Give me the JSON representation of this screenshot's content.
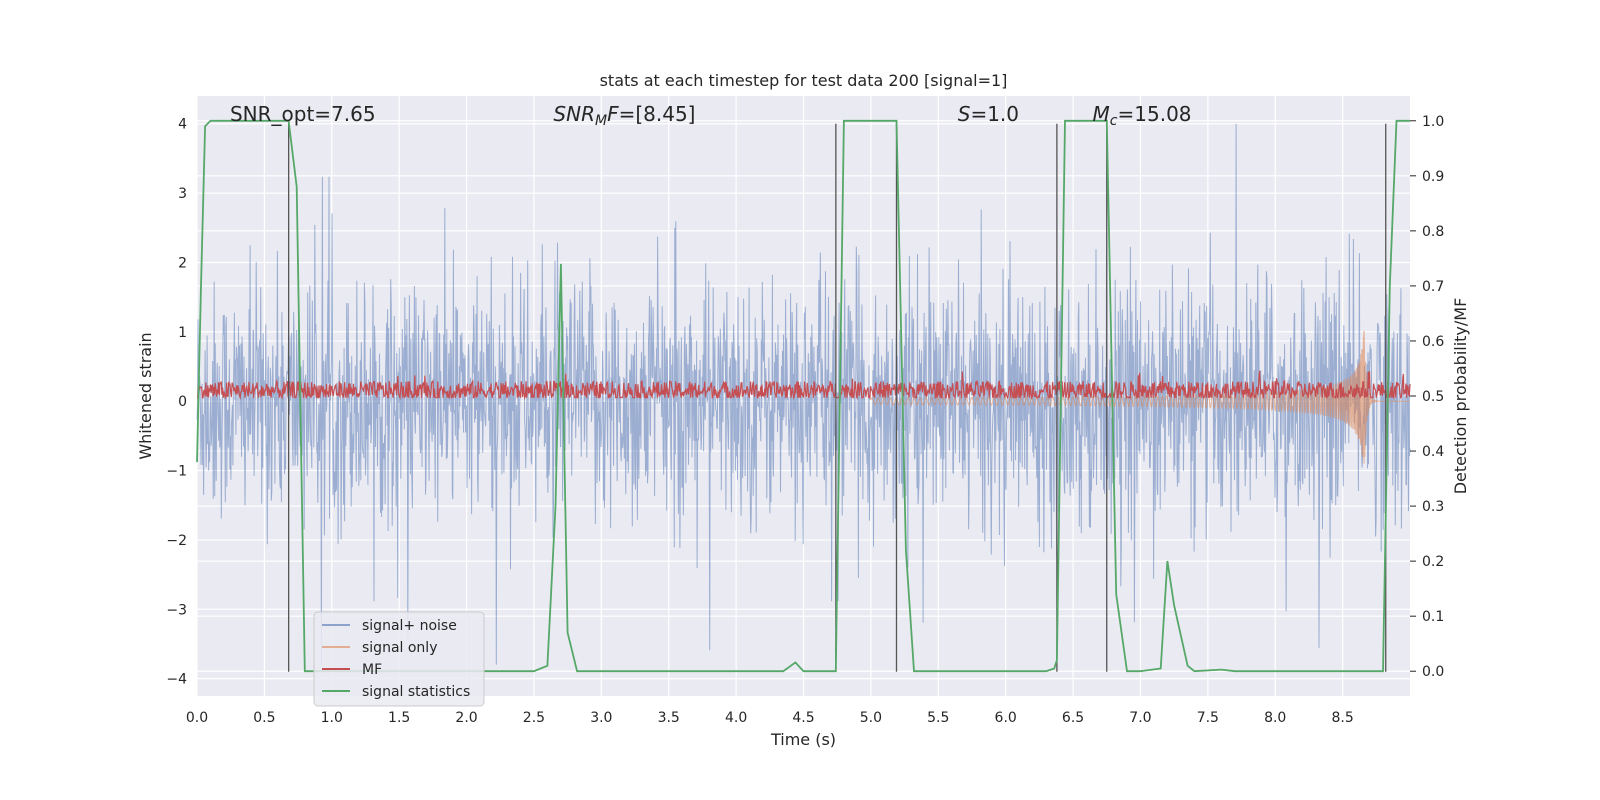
{
  "chart_data": {
    "type": "line",
    "title": "stats at each timestep for test data 200 [signal=1]",
    "xlabel": "Time (s)",
    "ylabel": "Whitened strain",
    "y2label": "Detection probability/MF",
    "xlim": [
      0.0,
      9.0
    ],
    "ylim": [
      -4.25,
      4.4
    ],
    "y2lim": [
      -0.045,
      1.045
    ],
    "xticks": [
      "0.0",
      "0.5",
      "1.0",
      "1.5",
      "2.0",
      "2.5",
      "3.0",
      "3.5",
      "4.0",
      "4.5",
      "5.0",
      "5.5",
      "6.0",
      "6.5",
      "7.0",
      "7.5",
      "8.0",
      "8.5"
    ],
    "yticks": [
      "−4",
      "−3",
      "−2",
      "−1",
      "0",
      "1",
      "2",
      "3",
      "4"
    ],
    "y2ticks": [
      "0.0",
      "0.1",
      "0.2",
      "0.3",
      "0.4",
      "0.5",
      "0.6",
      "0.7",
      "0.8",
      "0.9",
      "1.0"
    ],
    "grid": true,
    "legend_position": "lower-left",
    "annotations": [
      {
        "id": "snr-opt",
        "x": 0.2,
        "text": "SNR_opt=7.65"
      },
      {
        "id": "snr-mf",
        "x": 2.6,
        "text_parts": [
          {
            "t": "SNR",
            "italic": true
          },
          {
            "t": "M",
            "italic": true,
            "sub": true
          },
          {
            "t": "F",
            "italic": true
          },
          {
            "t": "=[8.45]",
            "italic": false
          }
        ]
      },
      {
        "id": "s-value",
        "x": 5.6,
        "text_parts": [
          {
            "t": "S",
            "italic": true
          },
          {
            "t": "=1.0",
            "italic": false
          }
        ]
      },
      {
        "id": "mc-value",
        "x": 6.6,
        "text_parts": [
          {
            "t": "M",
            "italic": true
          },
          {
            "t": "c",
            "italic": true,
            "sub": true
          },
          {
            "t": "=15.08",
            "italic": false
          }
        ]
      }
    ],
    "vertical_lines_x": [
      0.68,
      4.74,
      5.19,
      6.38,
      6.75,
      8.82
    ],
    "vertical_lines_range": [
      -3.9,
      4.0
    ],
    "series": [
      {
        "name": "signal+ noise",
        "color": "#4c72b0",
        "kind": "noise",
        "amplitude_typical": 1.6,
        "amplitude_peak": 4.0,
        "axis": "left"
      },
      {
        "name": "signal only",
        "color": "#dd8452",
        "kind": "chirp",
        "t_merger": 8.66,
        "peak_amplitude": 1.1,
        "axis": "left"
      },
      {
        "name": "MF",
        "color": "#c44e52",
        "kind": "mf_noise",
        "baseline": 0.15,
        "range": [
          0.05,
          0.35
        ],
        "axis": "left"
      },
      {
        "name": "signal statistics",
        "color": "#55a868",
        "kind": "probability",
        "axis": "right",
        "x": [
          0.0,
          0.03,
          0.06,
          0.1,
          0.6,
          0.68,
          0.74,
          0.8,
          1.0,
          2.5,
          2.6,
          2.66,
          2.7,
          2.75,
          2.82,
          3.0,
          4.35,
          4.44,
          4.5,
          4.7,
          4.74,
          4.8,
          5.0,
          5.17,
          5.19,
          5.26,
          5.32,
          5.5,
          6.3,
          6.36,
          6.38,
          6.44,
          6.5,
          6.74,
          6.75,
          6.82,
          6.9,
          7.0,
          7.15,
          7.2,
          7.25,
          7.35,
          7.4,
          7.6,
          7.7,
          8.0,
          8.8,
          8.85,
          8.9,
          8.95,
          9.0
        ],
        "y": [
          0.38,
          0.7,
          0.99,
          1.0,
          1.0,
          1.0,
          0.88,
          0.0,
          0.0,
          0.0,
          0.01,
          0.3,
          0.74,
          0.07,
          0.0,
          0.0,
          0.0,
          0.016,
          0.0,
          0.0,
          0.0,
          1.0,
          1.0,
          1.0,
          1.0,
          0.22,
          0.0,
          0.0,
          0.0,
          0.005,
          0.02,
          1.0,
          1.0,
          1.0,
          1.0,
          0.14,
          0.0,
          0.0,
          0.005,
          0.2,
          0.12,
          0.01,
          0.0,
          0.003,
          0.0,
          0.0,
          0.0,
          0.7,
          1.0,
          1.0,
          1.0
        ]
      }
    ]
  }
}
